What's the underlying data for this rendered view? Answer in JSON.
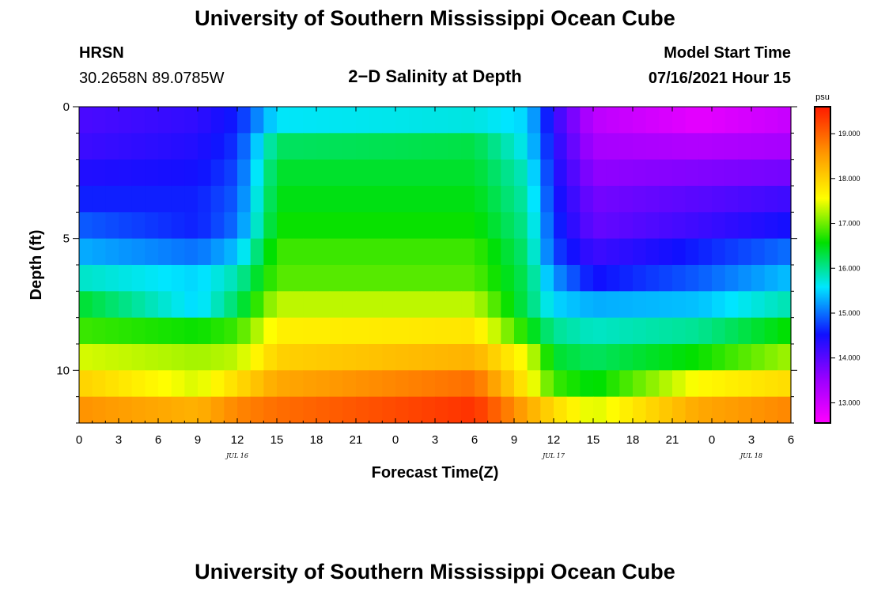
{
  "header": {
    "main_title": "University of Southern Mississippi Ocean Cube",
    "station": "HRSN",
    "coords": "30.2658N  89.0785W",
    "subtitle": "2−D Salinity at Depth",
    "model_start_label": "Model Start Time",
    "model_start_value": "07/16/2021 Hour 15"
  },
  "footer": {
    "main_title": "University of Southern Mississippi Ocean Cube"
  },
  "chart_data": {
    "type": "heatmap",
    "title": "2−D Salinity at Depth",
    "xlabel": "Forecast Time(Z)",
    "ylabel": "Depth (ft)",
    "x_tick_labels": [
      "0",
      "3",
      "6",
      "9",
      "12",
      "15",
      "18",
      "21",
      "0",
      "3",
      "6",
      "9",
      "12",
      "15",
      "18",
      "21",
      "0",
      "3",
      "6"
    ],
    "x_date_labels": [
      {
        "text": "JUL 16",
        "hour_index": 12
      },
      {
        "text": "JUL 17",
        "hour_index": 36
      },
      {
        "text": "JUL 18",
        "hour_index": 51
      }
    ],
    "y_ticks": [
      0,
      5,
      10
    ],
    "ylim": [
      0,
      12
    ],
    "colorbar": {
      "unit": "psu",
      "ticks": [
        "13.000",
        "14.000",
        "15.000",
        "16.000",
        "17.000",
        "18.000",
        "19.000"
      ],
      "min": 12.55,
      "max": 19.6
    },
    "hours": 54,
    "depth_levels": 12,
    "salinity_keyframes": {
      "hour_index": [
        0,
        9,
        12,
        15,
        30,
        34,
        36,
        39,
        47,
        54
      ],
      "by_depth": [
        [
          14.1,
          14.3,
          14.6,
          15.6,
          15.7,
          15.5,
          14.3,
          13.2,
          12.8,
          13.1
        ],
        [
          14.2,
          14.4,
          14.7,
          16.2,
          16.3,
          15.6,
          14.4,
          13.4,
          13.3,
          13.4
        ],
        [
          14.4,
          14.5,
          14.8,
          16.4,
          16.4,
          15.8,
          14.5,
          13.6,
          13.7,
          13.8
        ],
        [
          14.6,
          14.6,
          14.9,
          16.5,
          16.5,
          15.9,
          14.6,
          13.8,
          14.0,
          14.2
        ],
        [
          14.9,
          14.6,
          15.0,
          16.6,
          16.6,
          16.0,
          14.7,
          13.9,
          14.2,
          14.5
        ],
        [
          15.3,
          15.0,
          15.4,
          16.8,
          16.8,
          16.1,
          14.8,
          14.2,
          14.6,
          15.0
        ],
        [
          15.8,
          15.5,
          15.9,
          16.9,
          16.9,
          16.2,
          15.2,
          14.5,
          14.9,
          15.4
        ],
        [
          16.4,
          15.5,
          16.2,
          17.3,
          17.3,
          16.2,
          15.5,
          15.3,
          15.4,
          15.9
        ],
        [
          16.8,
          16.6,
          16.8,
          17.7,
          17.8,
          16.6,
          16.0,
          15.8,
          16.0,
          16.6
        ],
        [
          17.4,
          17.2,
          17.3,
          18.0,
          18.3,
          17.5,
          16.4,
          16.2,
          16.6,
          17.2
        ],
        [
          18.0,
          17.4,
          17.9,
          18.4,
          18.9,
          17.7,
          16.8,
          16.5,
          17.6,
          17.9
        ],
        [
          18.6,
          18.3,
          18.7,
          18.9,
          19.4,
          18.4,
          17.9,
          17.4,
          18.4,
          18.7
        ]
      ]
    }
  }
}
